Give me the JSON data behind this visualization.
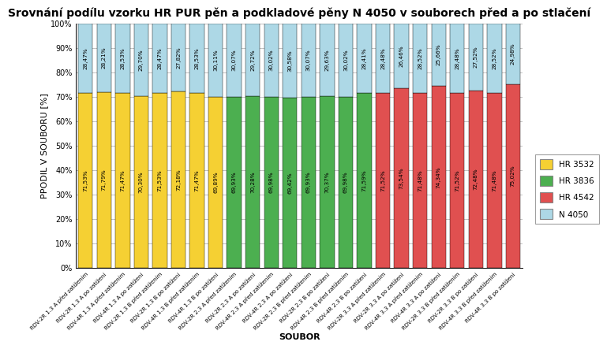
{
  "title": "Srovnání podílu vzorku HR PUR pěn a podkladové pěny N 4050 v souborech před a po stlačení",
  "xlabel": "SOUBOR",
  "ylabel": "PPODIL V SOUBORU [%]",
  "categories": [
    "RDV-2R 1.3 A před zatížením",
    "RDV-2R 1.3 A po zatížení",
    "RDV-4R 1.3 A před zatížením",
    "RDV-4R 1.3 A po zatížení",
    "RDV-2R 1.3 B před zatížením",
    "RDV-2R 1.3 B po zatížení",
    "RDV-4R 1.3 B před zatížením",
    "RDV-4R 1.3 B po zatížení",
    "RDV-2R 2.3 A před zatížením",
    "RDV-2R 2.3 A po zatížení",
    "RDV-4R 2.3 A před zatížením",
    "RDV-4R 2.3 A po zatížení",
    "RDV-2R 2.3 B před zatížením",
    "RDV-2R 2.3 B po zatížení",
    "RDV-4R 2.3 B před zatížením",
    "RDV-4R 2.3 B po zatížení",
    "RDV-2R 3.3 A před zatížením",
    "RDV-2R 3.3 A po zatížení",
    "RDV-4R 3.3 A před zatížením",
    "RDV-4R 3.3 A po zatížení",
    "RDV-2R 3.3 B před zatížením",
    "RDV-2R 3.3 B po zatížení",
    "RDV-4R 3.3 B před zatížením",
    "RDV-4R 3.3 B po zatížení"
  ],
  "hr_values": [
    71.53,
    71.79,
    71.47,
    70.3,
    71.53,
    72.18,
    71.47,
    69.89,
    69.93,
    70.28,
    69.98,
    69.42,
    69.93,
    70.37,
    69.98,
    71.59,
    71.52,
    73.54,
    71.48,
    74.34,
    71.52,
    72.48,
    71.48,
    75.02
  ],
  "n4050_values": [
    28.47,
    28.21,
    28.53,
    29.7,
    28.47,
    27.82,
    28.53,
    30.11,
    30.07,
    29.72,
    30.02,
    30.58,
    30.07,
    29.63,
    30.02,
    28.41,
    28.48,
    26.46,
    28.52,
    25.66,
    28.48,
    27.52,
    28.52,
    24.98
  ],
  "bar_types": [
    "yellow",
    "yellow",
    "yellow",
    "yellow",
    "yellow",
    "yellow",
    "yellow",
    "yellow",
    "green",
    "green",
    "green",
    "green",
    "green",
    "green",
    "green",
    "green",
    "red",
    "red",
    "red",
    "red",
    "red",
    "red",
    "red",
    "red"
  ],
  "colors": {
    "yellow": "#F5D033",
    "green": "#4CAF50",
    "red": "#E05050",
    "blue": "#ADD8E6"
  },
  "legend_labels": [
    "HR 3532",
    "HR 3836",
    "HR 4542",
    "N 4050"
  ],
  "legend_colors": [
    "#F5D033",
    "#4CAF50",
    "#E05050",
    "#ADD8E6"
  ],
  "ylim": [
    0,
    100
  ],
  "yticks": [
    0,
    10,
    20,
    30,
    40,
    50,
    60,
    70,
    80,
    90,
    100
  ],
  "ytick_labels": [
    "0%",
    "10%",
    "20%",
    "30%",
    "40%",
    "50%",
    "60%",
    "70%",
    "80%",
    "90%",
    "100%"
  ],
  "background_color": "#FFFFFF",
  "title_fontsize": 10,
  "label_fontsize": 8,
  "tick_fontsize": 7,
  "bar_fontsize": 5.2,
  "xtick_fontsize": 5.0
}
